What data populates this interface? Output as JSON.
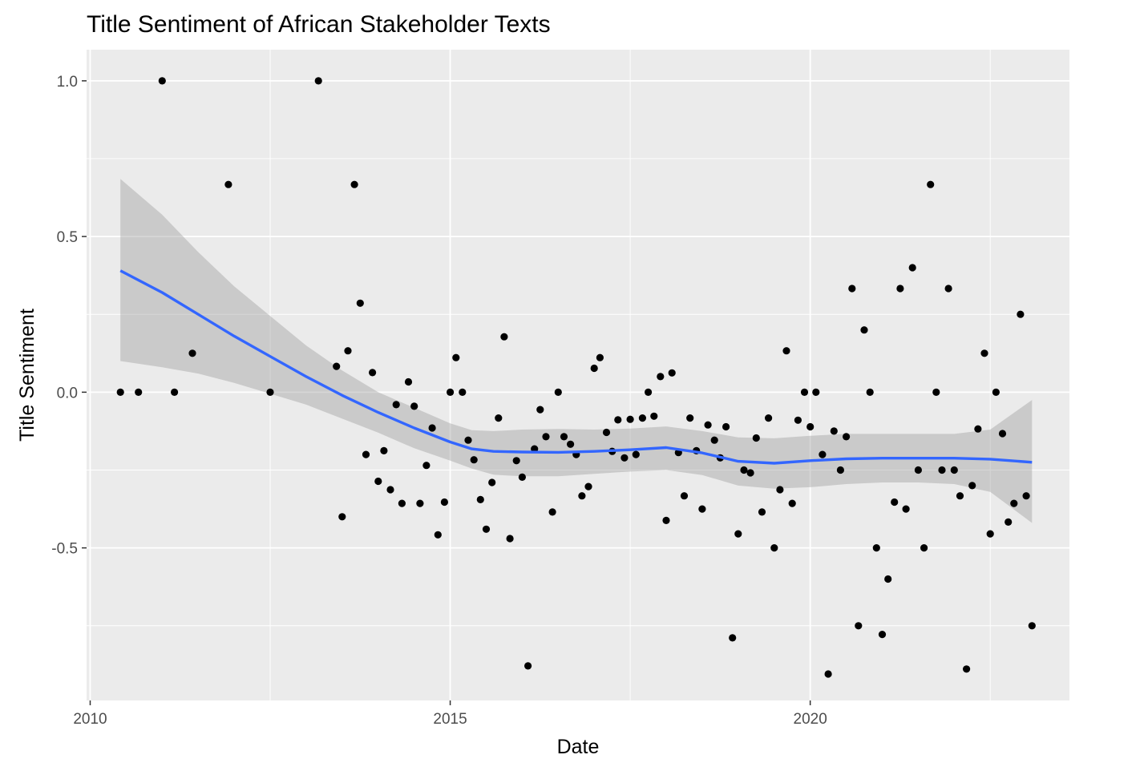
{
  "chart_data": {
    "type": "scatter",
    "title": "Title Sentiment of African Stakeholder Texts",
    "xlabel": "Date",
    "ylabel": "Title Sentiment",
    "xlim": [
      2009.95,
      2023.6
    ],
    "ylim": [
      -0.99,
      1.1
    ],
    "x_ticks": [
      2010,
      2015,
      2020
    ],
    "x_tick_labels": [
      "2010",
      "2015",
      "2020"
    ],
    "y_ticks": [
      1.0,
      0.5,
      0.0,
      -0.5
    ],
    "y_tick_labels": [
      "1.0",
      "0.5",
      "0.0",
      "-0.5"
    ],
    "grid": true,
    "colors": {
      "panel": "#ebebeb",
      "grid": "#ffffff",
      "points": "#000000",
      "smooth_line": "#3366ff",
      "ribbon": "#999999"
    },
    "points": [
      {
        "x": 2010.42,
        "y": 0.0
      },
      {
        "x": 2010.67,
        "y": 0.0
      },
      {
        "x": 2011.0,
        "y": 1.0
      },
      {
        "x": 2011.17,
        "y": 0.0
      },
      {
        "x": 2011.42,
        "y": 0.125
      },
      {
        "x": 2011.92,
        "y": 0.667
      },
      {
        "x": 2012.5,
        "y": 0.0
      },
      {
        "x": 2013.17,
        "y": 1.0
      },
      {
        "x": 2013.42,
        "y": 0.083
      },
      {
        "x": 2013.5,
        "y": -0.4
      },
      {
        "x": 2013.58,
        "y": 0.133
      },
      {
        "x": 2013.67,
        "y": 0.667
      },
      {
        "x": 2013.75,
        "y": 0.286
      },
      {
        "x": 2013.83,
        "y": -0.2
      },
      {
        "x": 2013.92,
        "y": 0.063
      },
      {
        "x": 2014.0,
        "y": -0.286
      },
      {
        "x": 2014.08,
        "y": -0.188
      },
      {
        "x": 2014.17,
        "y": -0.313
      },
      {
        "x": 2014.25,
        "y": -0.04
      },
      {
        "x": 2014.33,
        "y": -0.357
      },
      {
        "x": 2014.42,
        "y": 0.033
      },
      {
        "x": 2014.5,
        "y": -0.045
      },
      {
        "x": 2014.58,
        "y": -0.357
      },
      {
        "x": 2014.67,
        "y": -0.235
      },
      {
        "x": 2014.75,
        "y": -0.115
      },
      {
        "x": 2014.83,
        "y": -0.458
      },
      {
        "x": 2014.92,
        "y": -0.353
      },
      {
        "x": 2015.0,
        "y": 0.0
      },
      {
        "x": 2015.08,
        "y": 0.111
      },
      {
        "x": 2015.17,
        "y": 0.0
      },
      {
        "x": 2015.25,
        "y": -0.154
      },
      {
        "x": 2015.33,
        "y": -0.217
      },
      {
        "x": 2015.42,
        "y": -0.345
      },
      {
        "x": 2015.5,
        "y": -0.44
      },
      {
        "x": 2015.58,
        "y": -0.29
      },
      {
        "x": 2015.67,
        "y": -0.083
      },
      {
        "x": 2015.75,
        "y": 0.178
      },
      {
        "x": 2015.83,
        "y": -0.47
      },
      {
        "x": 2015.92,
        "y": -0.22
      },
      {
        "x": 2016.0,
        "y": -0.273
      },
      {
        "x": 2016.08,
        "y": -0.879
      },
      {
        "x": 2016.17,
        "y": -0.182
      },
      {
        "x": 2016.25,
        "y": -0.056
      },
      {
        "x": 2016.33,
        "y": -0.143
      },
      {
        "x": 2016.42,
        "y": -0.385
      },
      {
        "x": 2016.5,
        "y": 0.0
      },
      {
        "x": 2016.58,
        "y": -0.143
      },
      {
        "x": 2016.67,
        "y": -0.167
      },
      {
        "x": 2016.75,
        "y": -0.2
      },
      {
        "x": 2016.83,
        "y": -0.333
      },
      {
        "x": 2016.92,
        "y": -0.303
      },
      {
        "x": 2017.0,
        "y": 0.077
      },
      {
        "x": 2017.08,
        "y": 0.111
      },
      {
        "x": 2017.17,
        "y": -0.129
      },
      {
        "x": 2017.25,
        "y": -0.19
      },
      {
        "x": 2017.33,
        "y": -0.089
      },
      {
        "x": 2017.42,
        "y": -0.211
      },
      {
        "x": 2017.5,
        "y": -0.087
      },
      {
        "x": 2017.58,
        "y": -0.2
      },
      {
        "x": 2017.67,
        "y": -0.083
      },
      {
        "x": 2017.75,
        "y": 0.0
      },
      {
        "x": 2017.83,
        "y": -0.077
      },
      {
        "x": 2017.92,
        "y": 0.05
      },
      {
        "x": 2018.0,
        "y": -0.412
      },
      {
        "x": 2018.08,
        "y": 0.062
      },
      {
        "x": 2018.17,
        "y": -0.194
      },
      {
        "x": 2018.25,
        "y": -0.333
      },
      {
        "x": 2018.33,
        "y": -0.083
      },
      {
        "x": 2018.42,
        "y": -0.188
      },
      {
        "x": 2018.5,
        "y": -0.375
      },
      {
        "x": 2018.58,
        "y": -0.105
      },
      {
        "x": 2018.67,
        "y": -0.154
      },
      {
        "x": 2018.75,
        "y": -0.211
      },
      {
        "x": 2018.83,
        "y": -0.111
      },
      {
        "x": 2018.92,
        "y": -0.789
      },
      {
        "x": 2019.0,
        "y": -0.455
      },
      {
        "x": 2019.08,
        "y": -0.25
      },
      {
        "x": 2019.17,
        "y": -0.259
      },
      {
        "x": 2019.25,
        "y": -0.147
      },
      {
        "x": 2019.33,
        "y": -0.385
      },
      {
        "x": 2019.42,
        "y": -0.083
      },
      {
        "x": 2019.5,
        "y": -0.5
      },
      {
        "x": 2019.58,
        "y": -0.313
      },
      {
        "x": 2019.67,
        "y": 0.133
      },
      {
        "x": 2019.75,
        "y": -0.357
      },
      {
        "x": 2019.83,
        "y": -0.09
      },
      {
        "x": 2019.92,
        "y": 0.0
      },
      {
        "x": 2020.0,
        "y": -0.111
      },
      {
        "x": 2020.08,
        "y": 0.0
      },
      {
        "x": 2020.17,
        "y": -0.2
      },
      {
        "x": 2020.25,
        "y": -0.905
      },
      {
        "x": 2020.33,
        "y": -0.125
      },
      {
        "x": 2020.42,
        "y": -0.25
      },
      {
        "x": 2020.5,
        "y": -0.143
      },
      {
        "x": 2020.58,
        "y": 0.333
      },
      {
        "x": 2020.67,
        "y": -0.75
      },
      {
        "x": 2020.75,
        "y": 0.2
      },
      {
        "x": 2020.83,
        "y": 0.0
      },
      {
        "x": 2020.92,
        "y": -0.5
      },
      {
        "x": 2021.0,
        "y": -0.778
      },
      {
        "x": 2021.08,
        "y": -0.6
      },
      {
        "x": 2021.17,
        "y": -0.353
      },
      {
        "x": 2021.25,
        "y": 0.333
      },
      {
        "x": 2021.33,
        "y": -0.375
      },
      {
        "x": 2021.42,
        "y": 0.4
      },
      {
        "x": 2021.5,
        "y": -0.25
      },
      {
        "x": 2021.58,
        "y": -0.5
      },
      {
        "x": 2021.67,
        "y": 0.667
      },
      {
        "x": 2021.75,
        "y": 0.0
      },
      {
        "x": 2021.83,
        "y": -0.25
      },
      {
        "x": 2021.92,
        "y": 0.333
      },
      {
        "x": 2022.0,
        "y": -0.25
      },
      {
        "x": 2022.08,
        "y": -0.333
      },
      {
        "x": 2022.17,
        "y": -0.889
      },
      {
        "x": 2022.25,
        "y": -0.3
      },
      {
        "x": 2022.33,
        "y": -0.118
      },
      {
        "x": 2022.42,
        "y": 0.125
      },
      {
        "x": 2022.5,
        "y": -0.455
      },
      {
        "x": 2022.58,
        "y": 0.0
      },
      {
        "x": 2022.67,
        "y": -0.133
      },
      {
        "x": 2022.75,
        "y": -0.417
      },
      {
        "x": 2022.83,
        "y": -0.357
      },
      {
        "x": 2022.92,
        "y": 0.25
      },
      {
        "x": 2023.0,
        "y": -0.333
      },
      {
        "x": 2023.08,
        "y": -0.75
      }
    ],
    "smooth": {
      "method": "loess",
      "x": [
        2010.42,
        2011.0,
        2011.5,
        2012.0,
        2012.5,
        2013.0,
        2013.5,
        2014.0,
        2014.5,
        2015.0,
        2015.3,
        2015.6,
        2016.0,
        2016.5,
        2017.0,
        2017.5,
        2018.0,
        2018.5,
        2019.0,
        2019.5,
        2020.0,
        2020.5,
        2021.0,
        2021.5,
        2022.0,
        2022.5,
        2023.08
      ],
      "y": [
        0.39,
        0.32,
        0.25,
        0.18,
        0.115,
        0.05,
        -0.01,
        -0.065,
        -0.115,
        -0.16,
        -0.182,
        -0.19,
        -0.192,
        -0.193,
        -0.19,
        -0.185,
        -0.178,
        -0.195,
        -0.222,
        -0.228,
        -0.22,
        -0.214,
        -0.212,
        -0.212,
        -0.212,
        -0.215,
        -0.225
      ],
      "lower": [
        0.1,
        0.08,
        0.06,
        0.03,
        -0.005,
        -0.04,
        -0.085,
        -0.13,
        -0.18,
        -0.22,
        -0.245,
        -0.265,
        -0.27,
        -0.27,
        -0.262,
        -0.255,
        -0.25,
        -0.266,
        -0.3,
        -0.31,
        -0.305,
        -0.295,
        -0.29,
        -0.29,
        -0.295,
        -0.32,
        -0.42
      ],
      "upper": [
        0.685,
        0.57,
        0.45,
        0.34,
        0.245,
        0.15,
        0.07,
        0.0,
        -0.05,
        -0.1,
        -0.122,
        -0.125,
        -0.12,
        -0.118,
        -0.12,
        -0.117,
        -0.11,
        -0.125,
        -0.145,
        -0.148,
        -0.14,
        -0.134,
        -0.134,
        -0.134,
        -0.134,
        -0.12,
        -0.025
      ]
    }
  }
}
